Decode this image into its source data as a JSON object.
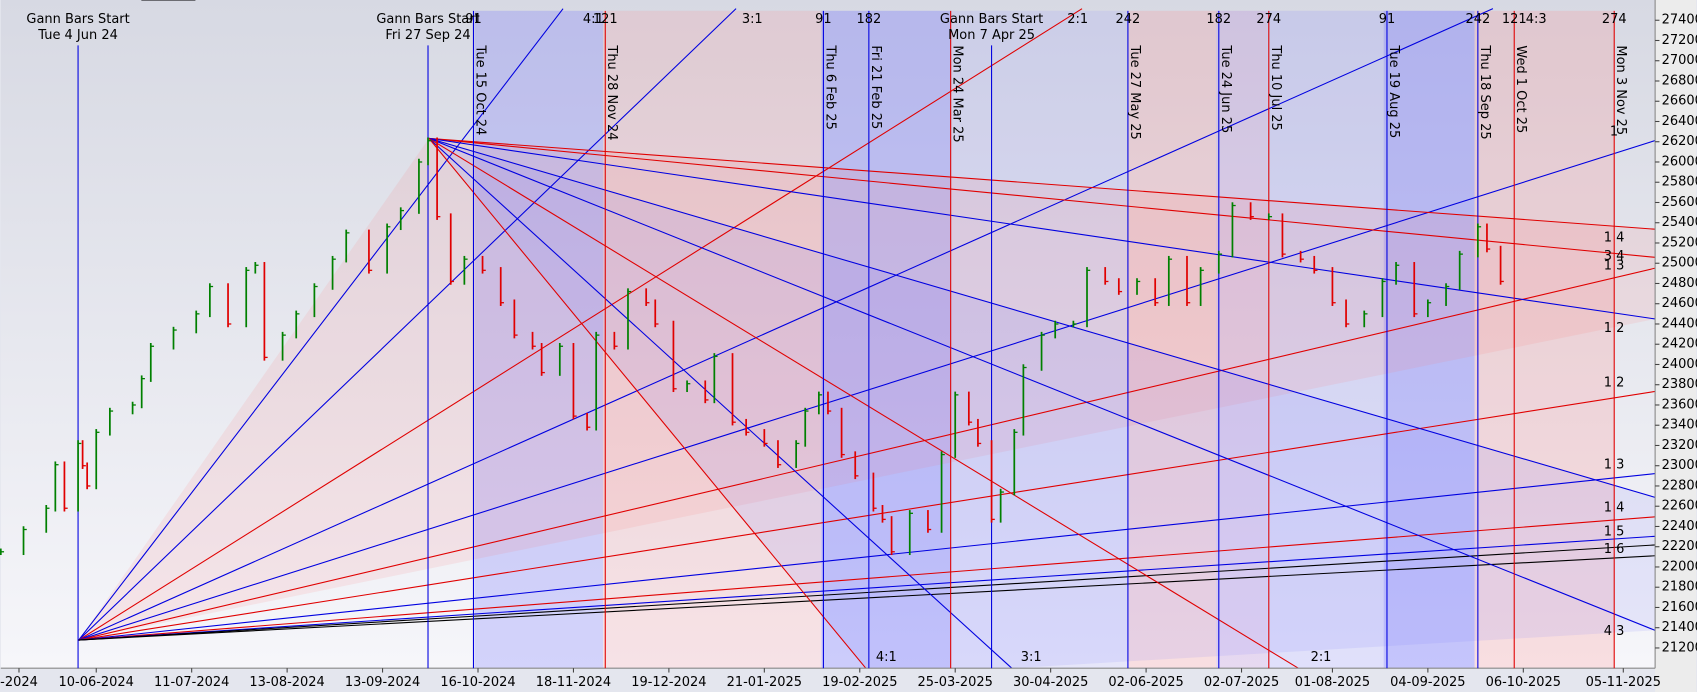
{
  "chart_data": {
    "type": "stock",
    "xlim": [
      0,
      364
    ],
    "ylim": [
      21000,
      27600
    ],
    "yticks": [
      21200,
      21400,
      21600,
      21800,
      22000,
      22200,
      22400,
      22600,
      22800,
      23000,
      23200,
      23400,
      23600,
      23800,
      24000,
      24200,
      24400,
      24600,
      24800,
      25000,
      25200,
      25400,
      25600,
      25800,
      26000,
      26200,
      26400,
      26600,
      26800,
      27000,
      27200,
      27400
    ],
    "xticks": [
      {
        "value": 4,
        "label": "-2024"
      },
      {
        "value": 21,
        "label": "10-06-2024"
      },
      {
        "value": 42,
        "label": "11-07-2024"
      },
      {
        "value": 63,
        "label": "13-08-2024"
      },
      {
        "value": 84,
        "label": "13-09-2024"
      },
      {
        "value": 105,
        "label": "16-10-2024"
      },
      {
        "value": 126,
        "label": "18-11-2024"
      },
      {
        "value": 147,
        "label": "19-12-2024"
      },
      {
        "value": 168,
        "label": "21-01-2025"
      },
      {
        "value": 189,
        "label": "19-02-2025"
      },
      {
        "value": 210,
        "label": "25-03-2025"
      },
      {
        "value": 231,
        "label": "30-04-2025"
      },
      {
        "value": 252,
        "label": "02-06-2025"
      },
      {
        "value": 273,
        "label": "02-07-2025"
      },
      {
        "value": 293,
        "label": "01-08-2025"
      },
      {
        "value": 314,
        "label": "04-09-2025"
      },
      {
        "value": 335,
        "label": "06-10-2025"
      },
      {
        "value": 357,
        "label": "05-11-2025"
      }
    ],
    "x": [
      0,
      5,
      10,
      12,
      14,
      17,
      18,
      19,
      21,
      24,
      29,
      31,
      33,
      38,
      43,
      46,
      50,
      54,
      56,
      58,
      62,
      65,
      69,
      73,
      76,
      81,
      85,
      88,
      92,
      94,
      96,
      99,
      102,
      106,
      110,
      113,
      117,
      119,
      123,
      126,
      129,
      131,
      135,
      138,
      142,
      144,
      148,
      151,
      155,
      157,
      161,
      164,
      168,
      171,
      175,
      177,
      180,
      182,
      185,
      188,
      192,
      194,
      196,
      200,
      204,
      207,
      210,
      213,
      215,
      218,
      220,
      223,
      225,
      229,
      232,
      236,
      239,
      243,
      246,
      250,
      254,
      257,
      261,
      264,
      268,
      271,
      275,
      279,
      282,
      286,
      289,
      293,
      296,
      300,
      304,
      307,
      311,
      314,
      318,
      321,
      325,
      327,
      330
    ],
    "values": [
      22150,
      22370,
      22580,
      23010,
      22580,
      23220,
      23000,
      22800,
      23330,
      23540,
      23600,
      23860,
      24180,
      24340,
      24500,
      24770,
      24400,
      24930,
      24980,
      24070,
      24290,
      24500,
      24770,
      25040,
      25300,
      24930,
      25360,
      25520,
      26000,
      26210,
      25460,
      24820,
      25040,
      24930,
      24610,
      24290,
      24180,
      23920,
      24180,
      23490,
      23380,
      24290,
      24180,
      24720,
      24610,
      24400,
      23760,
      23810,
      23650,
      24080,
      23430,
      23330,
      23220,
      23010,
      23220,
      23540,
      23700,
      23540,
      23110,
      22900,
      22580,
      22470,
      22150,
      22530,
      22370,
      23110,
      23700,
      23430,
      23220,
      22470,
      22740,
      23330,
      23970,
      24290,
      24400,
      24400,
      24930,
      24820,
      24720,
      24820,
      24610,
      25040,
      24610,
      24930,
      25090,
      25570,
      25460,
      25460,
      25090,
      25040,
      24930,
      24610,
      24400,
      24500,
      24820,
      24980,
      24500,
      24610,
      24770,
      25090,
      25360,
      25140,
      24820
    ],
    "up_color": "#008000",
    "down_color": "#e00000",
    "gann_starts": [
      {
        "title": "Gann Bars Start",
        "date": "Tue 4 Jun 24",
        "x": 17
      },
      {
        "title": "Gann Bars Start",
        "date": "Fri 27 Sep 24",
        "x": 94
      },
      {
        "title": "Gann Bars Start",
        "date": "Mon 7 Apr 25",
        "x": 218
      }
    ],
    "events": [
      {
        "label": "Tue 15 Oct 24",
        "count": "91",
        "x": 104,
        "color": "#0000e0"
      },
      {
        "label": "Thu 28 Nov 24",
        "count": "121",
        "x": 133,
        "color": "#e00000"
      },
      {
        "label": "Thu 6 Feb 25",
        "count": "91",
        "x": 181,
        "color": "#0000e0"
      },
      {
        "label": "Fri 21 Feb 25",
        "count": "182",
        "x": 191,
        "color": "#0000e0"
      },
      {
        "label": "Mon 24 Mar 25",
        "x": 209,
        "color": "#e00000"
      },
      {
        "label": "Tue 27 May 25",
        "count": "242",
        "x": 248,
        "color": "#0000e0"
      },
      {
        "label": "Tue 24 Jun 25",
        "count": "182",
        "x": 268,
        "color": "#0000e0"
      },
      {
        "label": "Thu 10 Jul 25",
        "count": "274",
        "x": 279,
        "color": "#e00000"
      },
      {
        "label": "Tue 19 Aug 25",
        "count": "91",
        "x": 305,
        "color": "#0000e0"
      },
      {
        "label": "Thu 18 Sep 25",
        "count": "242",
        "x": 325,
        "color": "#0000e0"
      },
      {
        "label": "Wed 1 Oct 25",
        "count": "121",
        "x": 333,
        "color": "#e00000"
      },
      {
        "label": "Mon 3 Nov 25",
        "count": "274",
        "x": 355,
        "color": "#e00000"
      }
    ],
    "fan_labels_top": [
      "4:1",
      "3:1",
      "2:1",
      "4:3"
    ],
    "fan_labels_bottom": [
      "4:1",
      "3:1",
      "2:1"
    ],
    "fan_labels_right": [
      "1",
      "1 4",
      "3 4",
      "1 3",
      "1 2",
      "1 2",
      "1 3",
      "1 4",
      "1 5",
      "1 6",
      "4 3"
    ]
  }
}
